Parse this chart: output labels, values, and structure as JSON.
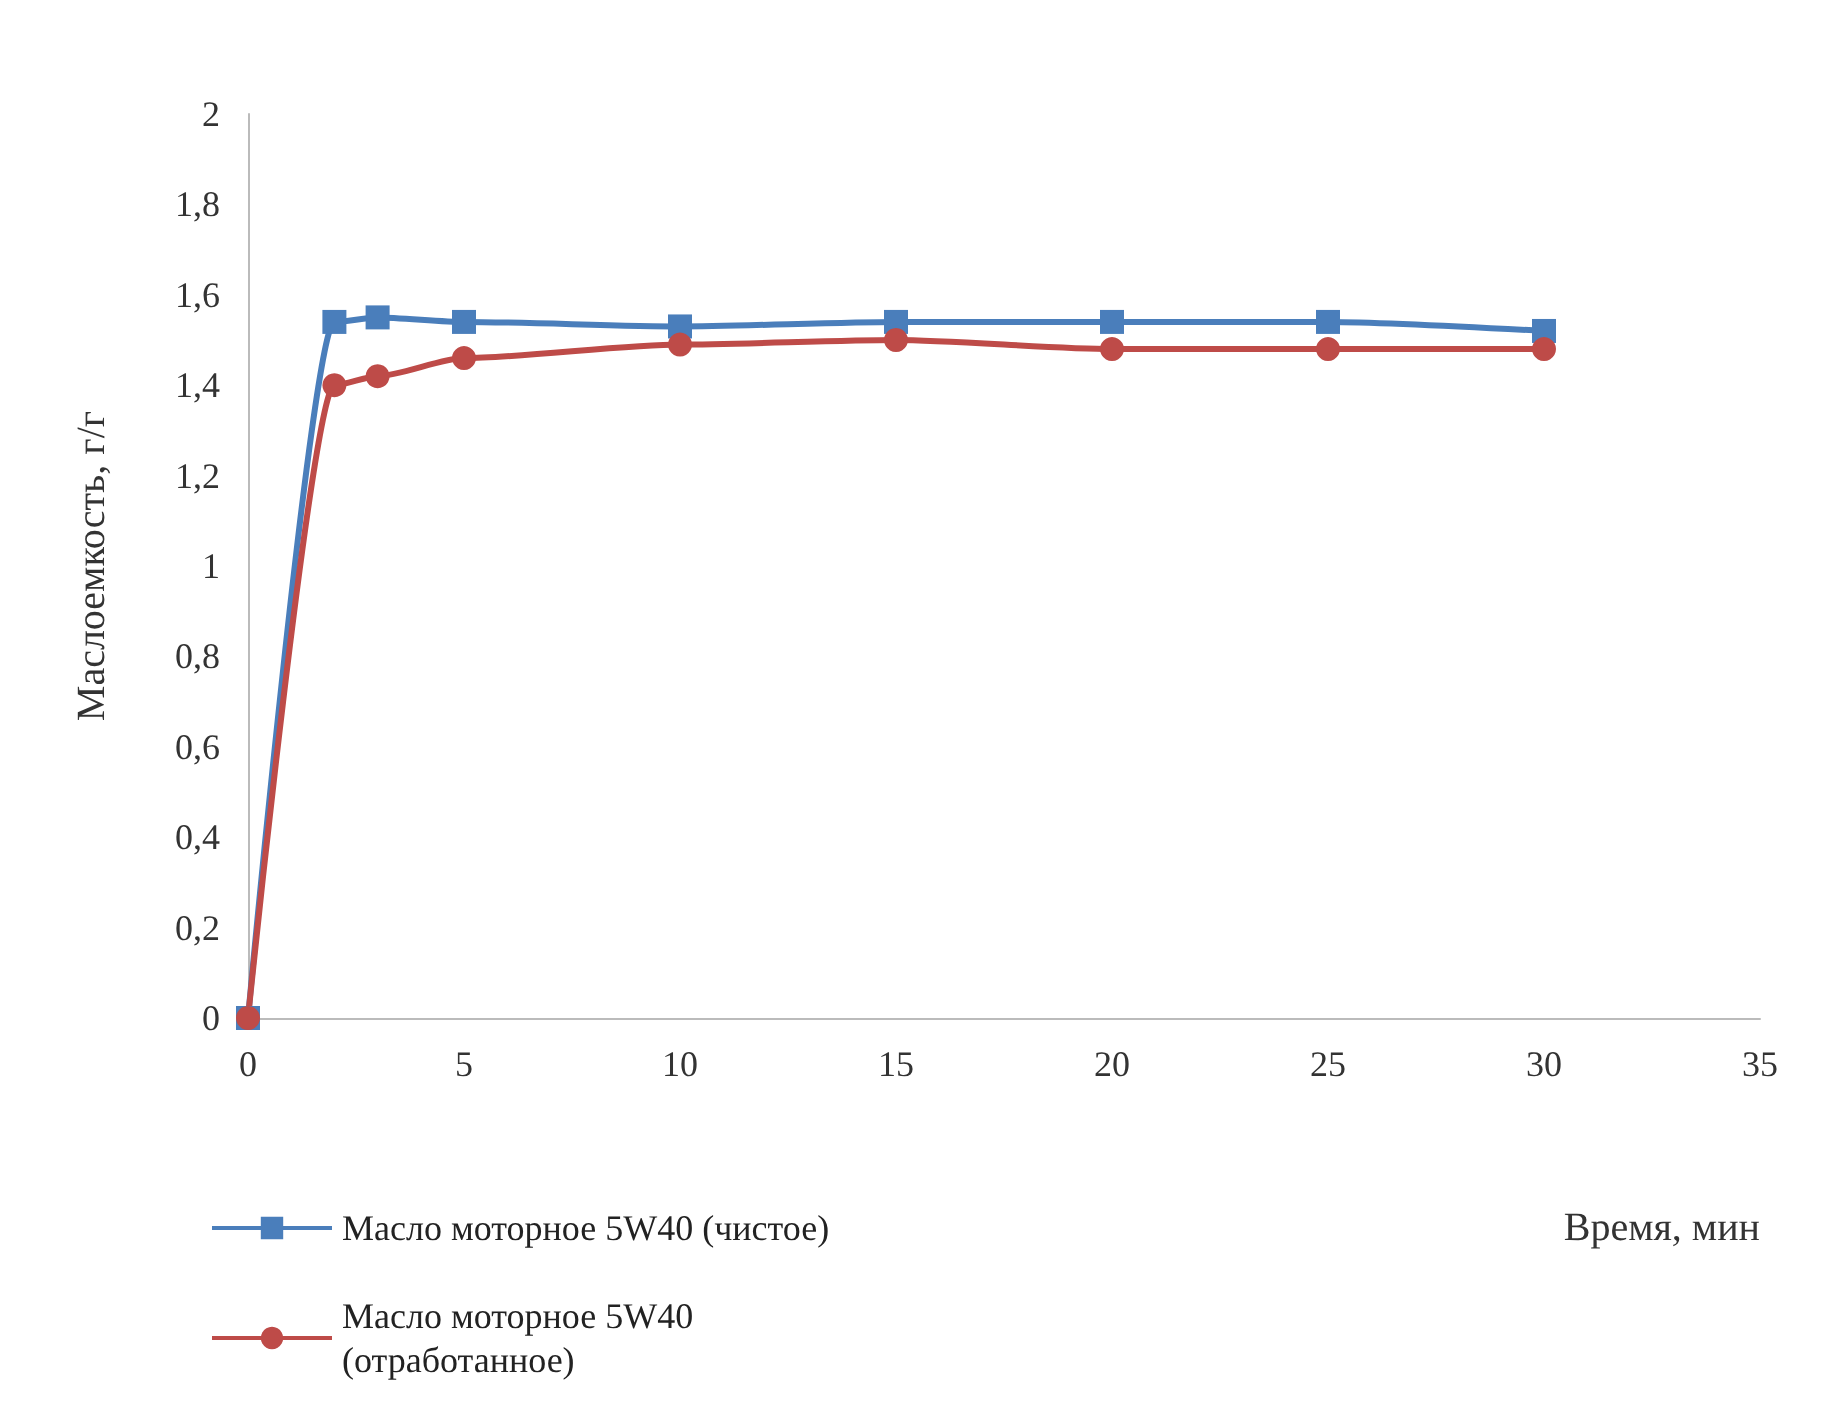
{
  "chart_data": {
    "type": "line",
    "xlabel": "Время, мин",
    "ylabel": "Маслоемкость, г/г",
    "x": [
      0,
      2,
      3,
      5,
      10,
      15,
      20,
      25,
      30
    ],
    "series": [
      {
        "name": "Масло моторное 5W40 (чистое)",
        "color": "#4a7ebb",
        "marker": "square",
        "values": [
          0,
          1.54,
          1.55,
          1.54,
          1.53,
          1.54,
          1.54,
          1.54,
          1.52
        ]
      },
      {
        "name": "Масло моторное 5W40\n(отработанное)",
        "color": "#be4b48",
        "marker": "circle",
        "values": [
          0,
          1.4,
          1.42,
          1.46,
          1.49,
          1.5,
          1.48,
          1.48,
          1.48
        ]
      }
    ],
    "xlim": [
      0,
      35
    ],
    "xticks": [
      0,
      5,
      10,
      15,
      20,
      25,
      30,
      35
    ],
    "ylim": [
      0,
      2
    ],
    "yticks": [
      0,
      {
        "value": 0.2,
        "label": "0,2"
      },
      {
        "value": 0.4,
        "label": "0,4"
      },
      {
        "value": 0.6,
        "label": "0,6"
      },
      {
        "value": 0.8,
        "label": "0,8"
      },
      1,
      {
        "value": 1.2,
        "label": "1,2"
      },
      {
        "value": 1.4,
        "label": "1,4"
      },
      {
        "value": 1.6,
        "label": "1,6"
      },
      {
        "value": 1.8,
        "label": "1,8"
      },
      2
    ],
    "grid": false,
    "legend": "bottom left"
  }
}
